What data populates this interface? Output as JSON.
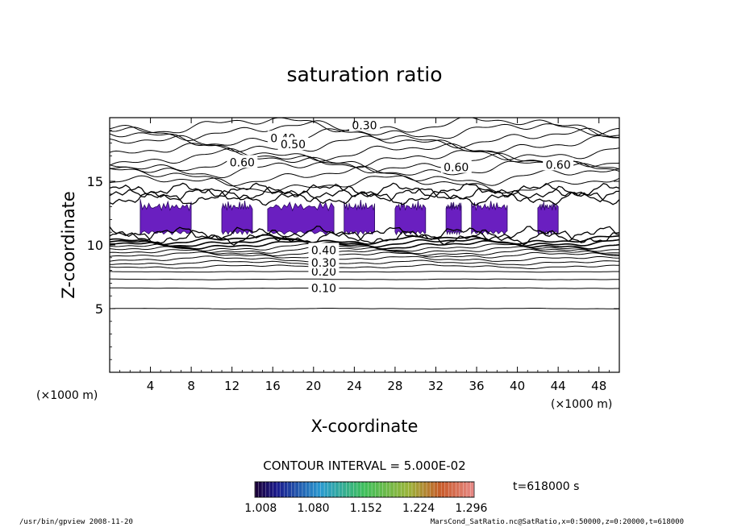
{
  "chart_data": {
    "type": "contour",
    "title": "saturation ratio",
    "xlabel": "X-coordinate",
    "ylabel": "Z-coordinate",
    "x_unit": "(×1000 m)",
    "y_unit": "(×1000 m)",
    "xlim": [
      0,
      50
    ],
    "ylim": [
      0,
      20
    ],
    "x_ticks": [
      4,
      8,
      12,
      16,
      20,
      24,
      28,
      32,
      36,
      40,
      44,
      48
    ],
    "y_ticks": [
      5,
      10,
      15
    ],
    "contour_interval_text": "CONTOUR INTERVAL = 5.000E-02",
    "time_label": "t=618000 s",
    "colorbar_ticks": [
      "1.008",
      "1.080",
      "1.152",
      "1.224",
      "1.296"
    ],
    "colorbar_range": [
      1.0,
      1.3
    ],
    "contour_labels": [
      {
        "text": "0.10",
        "x": 21,
        "y": 6.6
      },
      {
        "text": "0.20",
        "x": 21,
        "y": 7.9
      },
      {
        "text": "0.30",
        "x": 21,
        "y": 8.6
      },
      {
        "text": "0.40",
        "x": 21,
        "y": 9.6
      },
      {
        "text": "0.30",
        "x": 25,
        "y": 19.4
      },
      {
        "text": "0.40",
        "x": 17,
        "y": 18.4
      },
      {
        "text": "0.50",
        "x": 18,
        "y": 17.9
      },
      {
        "text": "0.60",
        "x": 13,
        "y": 16.5
      },
      {
        "text": "0.60",
        "x": 34,
        "y": 16.1
      },
      {
        "text": "0.60",
        "x": 44,
        "y": 16.3
      }
    ],
    "supersaturated_regions_x": [
      [
        3,
        8
      ],
      [
        11,
        14
      ],
      [
        15.5,
        22
      ],
      [
        23,
        26
      ],
      [
        28,
        31
      ],
      [
        33,
        34.5
      ],
      [
        35.5,
        39
      ],
      [
        42,
        44
      ]
    ],
    "supersaturated_band_z": [
      10.8,
      13.6
    ]
  },
  "footer": {
    "left": "/usr/bin/gpview  2008-11-20",
    "right": "MarsCond_SatRatio.nc@SatRatio,x=0:50000,z=0:20000,t=618000"
  }
}
